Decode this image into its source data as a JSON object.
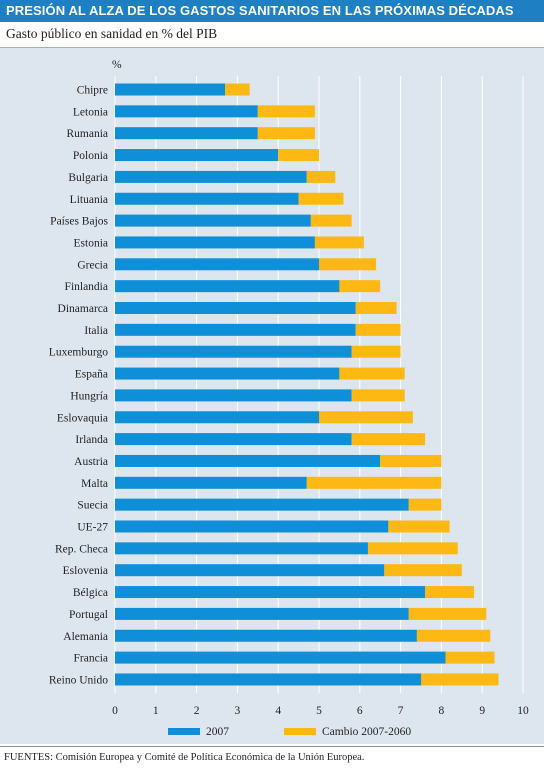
{
  "header": {
    "title": "PRESIÓN AL ALZA DE LOS GASTOS SANITARIOS EN LAS PRÓXIMAS DÉCADAS",
    "subtitle": "Gasto público en sanidad en % del PIB"
  },
  "footer": {
    "source": "FUENTES: Comisión Europea y Comité de Política Económica de la Unión Europea."
  },
  "chart_data": {
    "type": "bar",
    "orientation": "horizontal",
    "stacked": true,
    "unit_label": "%",
    "xlim": [
      0,
      10
    ],
    "x_ticks": [
      "0",
      "1",
      "2",
      "3",
      "4",
      "5",
      "6",
      "7",
      "8",
      "9",
      "10"
    ],
    "grid": true,
    "legend_position": "bottom",
    "colors": {
      "base": "#0f8fd8",
      "change": "#fdb813",
      "panel": "#dde6ef",
      "title_bar": "#1e7fc2"
    },
    "categories": [
      "Chipre",
      "Letonia",
      "Rumania",
      "Polonia",
      "Bulgaria",
      "Lituania",
      "Países Bajos",
      "Estonia",
      "Grecia",
      "Finlandia",
      "Dinamarca",
      "Italia",
      "Luxemburgo",
      "España",
      "Hungría",
      "Eslovaquia",
      "Irlanda",
      "Austria",
      "Malta",
      "Suecia",
      "UE-27",
      "Rep. Checa",
      "Eslovenia",
      "Bélgica",
      "Portugal",
      "Alemania",
      "Francia",
      "Reino Unido"
    ],
    "series": [
      {
        "name": "2007",
        "values": [
          2.7,
          3.5,
          3.5,
          4.0,
          4.7,
          4.5,
          4.8,
          4.9,
          5.0,
          5.5,
          5.9,
          5.9,
          5.8,
          5.5,
          5.8,
          5.0,
          5.8,
          6.5,
          4.7,
          7.2,
          6.7,
          6.2,
          6.6,
          7.6,
          7.2,
          7.4,
          8.1,
          7.5
        ]
      },
      {
        "name": "Cambio 2007-2060",
        "values": [
          0.6,
          1.4,
          1.4,
          1.0,
          0.7,
          1.1,
          1.0,
          1.2,
          1.4,
          1.0,
          1.0,
          1.1,
          1.2,
          1.6,
          1.3,
          2.3,
          1.8,
          1.5,
          3.3,
          0.8,
          1.5,
          2.2,
          1.9,
          1.2,
          1.9,
          1.8,
          1.2,
          1.9
        ]
      }
    ]
  }
}
